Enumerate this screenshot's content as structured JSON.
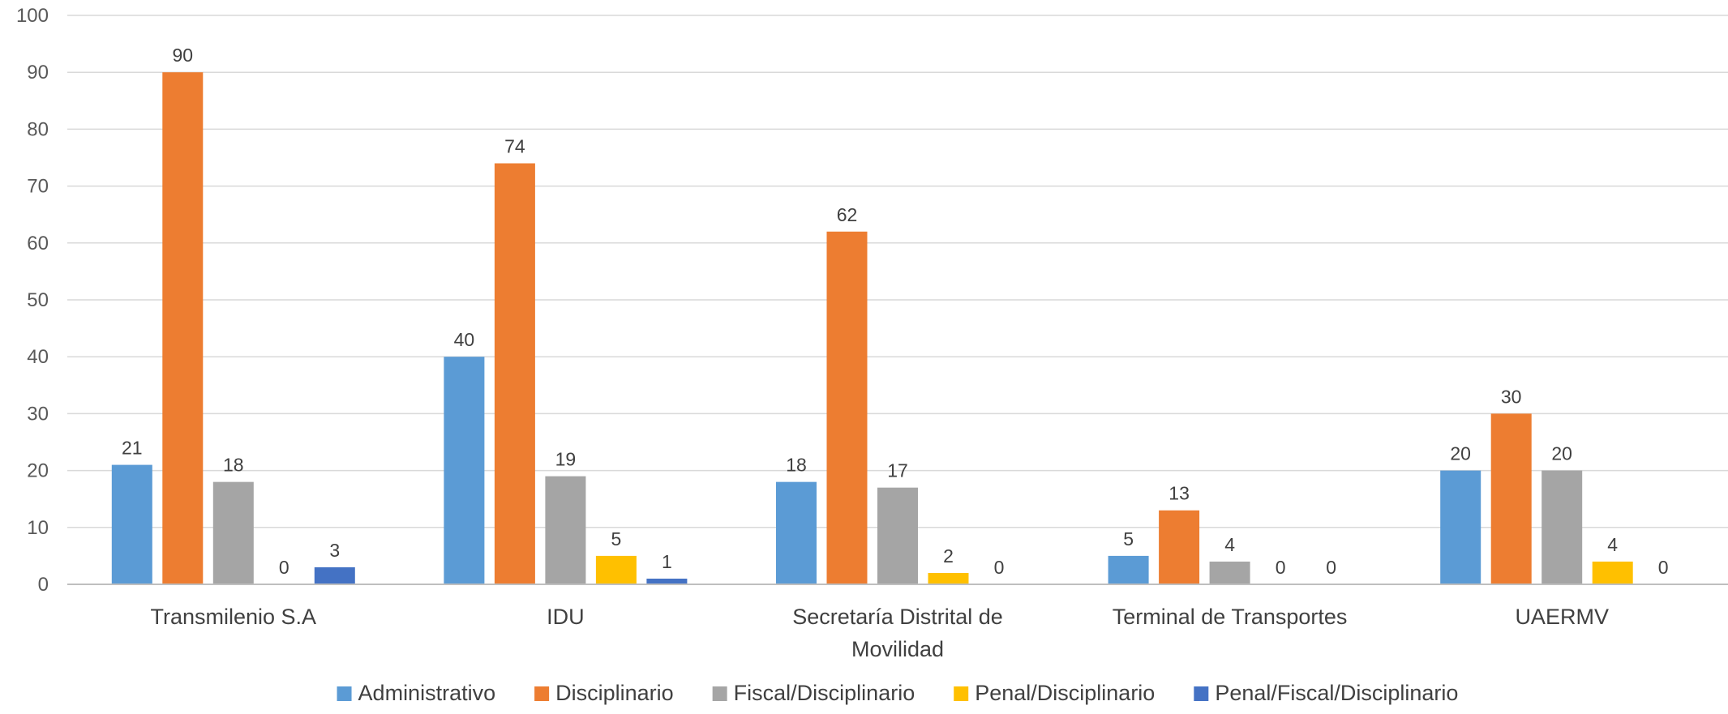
{
  "chart_data": {
    "type": "bar",
    "title": "",
    "xlabel": "",
    "ylabel": "",
    "ylim": [
      0,
      100
    ],
    "yticks": [
      0,
      10,
      20,
      30,
      40,
      50,
      60,
      70,
      80,
      90,
      100
    ],
    "grid": true,
    "legend_position": "bottom",
    "categories": [
      [
        "Transmilenio S.A"
      ],
      [
        "IDU"
      ],
      [
        "Secretaría Distrital de",
        "Movilidad"
      ],
      [
        "Terminal de Transportes"
      ],
      [
        "UAERMV"
      ]
    ],
    "series": [
      {
        "name": "Administrativo",
        "color": "#5B9BD5",
        "values": [
          21,
          40,
          18,
          5,
          20
        ]
      },
      {
        "name": "Disciplinario",
        "color": "#ED7D31",
        "values": [
          90,
          74,
          62,
          13,
          30
        ]
      },
      {
        "name": "Fiscal/Disciplinario",
        "color": "#A5A5A5",
        "values": [
          18,
          19,
          17,
          4,
          20
        ]
      },
      {
        "name": "Penal/Disciplinario",
        "color": "#FFC000",
        "values": [
          0,
          5,
          2,
          0,
          4
        ]
      },
      {
        "name": "Penal/Fiscal/Disciplinario",
        "color": "#4472C4",
        "values": [
          3,
          1,
          0,
          0,
          0
        ]
      }
    ],
    "data_labels": [
      [
        21,
        90,
        18,
        0,
        3
      ],
      [
        40,
        74,
        19,
        5,
        1
      ],
      [
        18,
        62,
        17,
        2,
        0
      ],
      [
        5,
        13,
        4,
        0,
        0
      ],
      [
        20,
        30,
        20,
        4,
        0
      ]
    ]
  }
}
